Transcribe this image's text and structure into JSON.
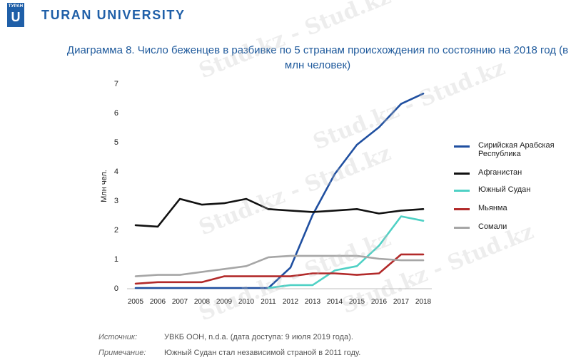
{
  "header": {
    "logo_text": "ТУРАН",
    "logo_letter": "U",
    "brand": "TURAN UNIVERSITY"
  },
  "chart_data": {
    "type": "line",
    "title": "Диаграмма 8. Число беженцев в разбивке по 5 странам происхождения по состоянию на 2018 год (в млн человек)",
    "xlabel": "",
    "ylabel": "Млн чел.",
    "x": [
      "2005",
      "2006",
      "2007",
      "2008",
      "2009",
      "2010",
      "2011",
      "2012",
      "2013",
      "2014",
      "2015",
      "2016",
      "2017",
      "2018"
    ],
    "ylim": [
      0,
      7
    ],
    "yticks": [
      "0",
      "1",
      "2",
      "3",
      "4",
      "5",
      "6",
      "7"
    ],
    "grid": false,
    "legend": "right",
    "series": [
      {
        "name": "Сирийская Арабская Республика",
        "color": "#1f4fa0",
        "values": [
          0,
          0,
          0,
          0,
          0,
          0,
          0,
          0.7,
          2.5,
          3.9,
          4.9,
          5.5,
          6.3,
          6.65
        ]
      },
      {
        "name": "Афганистан",
        "color": "#111111",
        "values": [
          2.15,
          2.1,
          3.05,
          2.85,
          2.9,
          3.05,
          2.7,
          2.65,
          2.6,
          2.65,
          2.7,
          2.55,
          2.65,
          2.7
        ]
      },
      {
        "name": "Южный Судан",
        "color": "#4fd1c5",
        "values": [
          null,
          null,
          null,
          null,
          null,
          null,
          0,
          0.1,
          0.1,
          0.6,
          0.75,
          1.45,
          2.45,
          2.3
        ]
      },
      {
        "name": "Мьянма",
        "color": "#b22a2a",
        "values": [
          0.15,
          0.2,
          0.2,
          0.2,
          0.4,
          0.4,
          0.4,
          0.4,
          0.5,
          0.5,
          0.45,
          0.5,
          1.15,
          1.15
        ]
      },
      {
        "name": "Сомали",
        "color": "#a6a6a6",
        "values": [
          0.4,
          0.45,
          0.45,
          0.55,
          0.65,
          0.75,
          1.05,
          1.1,
          1.1,
          1.1,
          1.1,
          1.0,
          0.95,
          0.95
        ]
      }
    ]
  },
  "notes": [
    {
      "label": "Источник:",
      "text": "УВКБ ООН, n.d.a. (дата доступа: 9 июля 2019 года)."
    },
    {
      "label": "Примечание:",
      "text": "Южный Судан стал независимой страной в 2011 году."
    }
  ],
  "watermark": "Stud.kz - Stud.kz"
}
